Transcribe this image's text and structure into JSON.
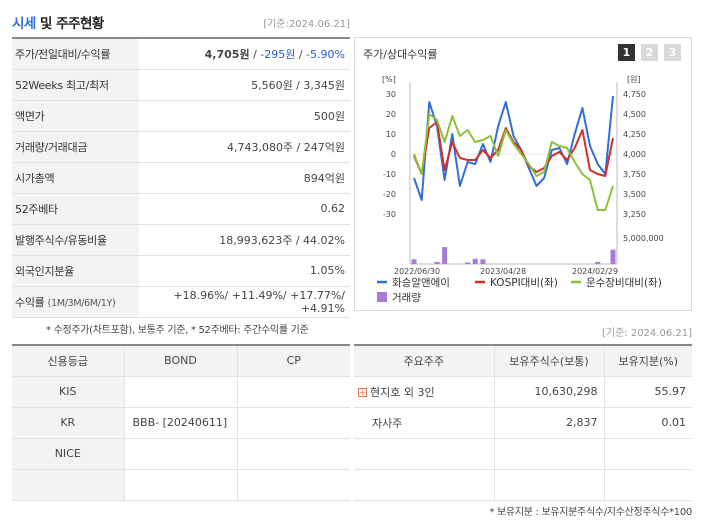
{
  "header": {
    "title_main": "시세",
    "title_rest": " 및 주주현황",
    "date": "[기준:2024.06.21]"
  },
  "quote": {
    "rows": [
      {
        "label": "주가/전일대비/수익률",
        "price": "4,705원",
        "change": "-295원",
        "rate": "-5.90%"
      },
      {
        "label": "52Weeks 최고/최저",
        "value": "5,560원 / 3,345원"
      },
      {
        "label": "액면가",
        "value": "500원"
      },
      {
        "label": "거래량/거래대금",
        "value": "4,743,080주 / 247억원"
      },
      {
        "label": "시가총액",
        "value": "894억원"
      },
      {
        "label": "52주베타",
        "value": "0.62"
      },
      {
        "label": "발행주식수/유동비율",
        "value": "18,993,623주 / 44.02%"
      },
      {
        "label": "외국인지분율",
        "value": "1.05%"
      },
      {
        "label": "수익률",
        "label_sub": "(1M/3M/6M/1Y)",
        "r1": "+18.96%",
        "r2": "+11.49%",
        "r3": "+17.77%",
        "r4": "+4.91%"
      }
    ],
    "note": "* 수정주가(차트포함), 보통주 기준, * 52주베타: 주간수익률 기준"
  },
  "chart_panel": {
    "title": "주가/상대수익률",
    "tabs": [
      "1",
      "2",
      "3"
    ],
    "active_tab": 0
  },
  "chart_data": {
    "type": "line",
    "left_unit": "[%]",
    "right_unit": "[원]",
    "left_ticks": [
      "30",
      "20",
      "10",
      "0",
      "-10",
      "-20",
      "-30"
    ],
    "right_ticks": [
      "4,750",
      "4,500",
      "4,250",
      "4,000",
      "3,750",
      "3,500",
      "3,250"
    ],
    "vol_tick": "5,000,000",
    "x_labels": [
      "2022/06/30",
      "2023/04/28",
      "2024/02/29"
    ],
    "series": [
      {
        "name": "화승알앤에이",
        "color": "#2f6fd6",
        "values": [
          -12,
          -23,
          26,
          14,
          -13,
          10,
          -16,
          -4,
          -5,
          5,
          -4,
          14,
          26,
          9,
          2,
          -7,
          -16,
          -12,
          2,
          3,
          -5,
          10,
          23,
          4,
          -5,
          -10,
          29
        ]
      },
      {
        "name": "KOSPI대비(좌)",
        "color": "#d0302a",
        "values": [
          -1,
          -10,
          13,
          16,
          -8,
          6,
          -2,
          -3,
          -3,
          2,
          -2,
          2,
          13,
          6,
          2,
          -6,
          -9,
          -7,
          -1,
          1,
          -3,
          3,
          12,
          -8,
          -10,
          -11,
          8
        ]
      },
      {
        "name": "운수장비대비(좌)",
        "color": "#8dc03a",
        "values": [
          0,
          -10,
          20,
          17,
          6,
          19,
          9,
          12,
          6,
          7,
          9,
          -1,
          12,
          5,
          0,
          -5,
          -11,
          -9,
          6,
          4,
          3,
          -4,
          -10,
          -13,
          -28,
          -28,
          -16
        ]
      }
    ],
    "volume": {
      "name": "거래량",
      "color": "#a77bd8",
      "values": [
        0.18,
        0,
        0,
        0.08,
        0.65,
        0,
        0,
        0.06,
        0.2,
        0.18,
        0,
        0,
        0,
        0,
        0,
        0,
        0,
        0,
        0,
        0,
        0,
        0,
        0,
        0,
        0.08,
        0,
        0.55
      ]
    }
  },
  "credit": {
    "headers": [
      "신용등급",
      "BOND",
      "CP"
    ],
    "rows": [
      [
        "KIS",
        "",
        ""
      ],
      [
        "KR",
        "BBB- [20240611]",
        ""
      ],
      [
        "NICE",
        "",
        ""
      ],
      [
        "",
        "",
        ""
      ]
    ]
  },
  "holders": {
    "headers": [
      "주요주주",
      "보유주식수(보통)",
      "보유지분(%)"
    ],
    "rows": [
      [
        "현지호 외 3인",
        "10,630,298",
        "55.97"
      ],
      [
        "자사주",
        "2,837",
        "0.01"
      ],
      [
        "",
        "",
        ""
      ],
      [
        "",
        "",
        ""
      ]
    ],
    "date": "[기준: 2024.06.21]",
    "note": "* 보유지분 : 보유지분주식수/지수산정주식수*100"
  }
}
